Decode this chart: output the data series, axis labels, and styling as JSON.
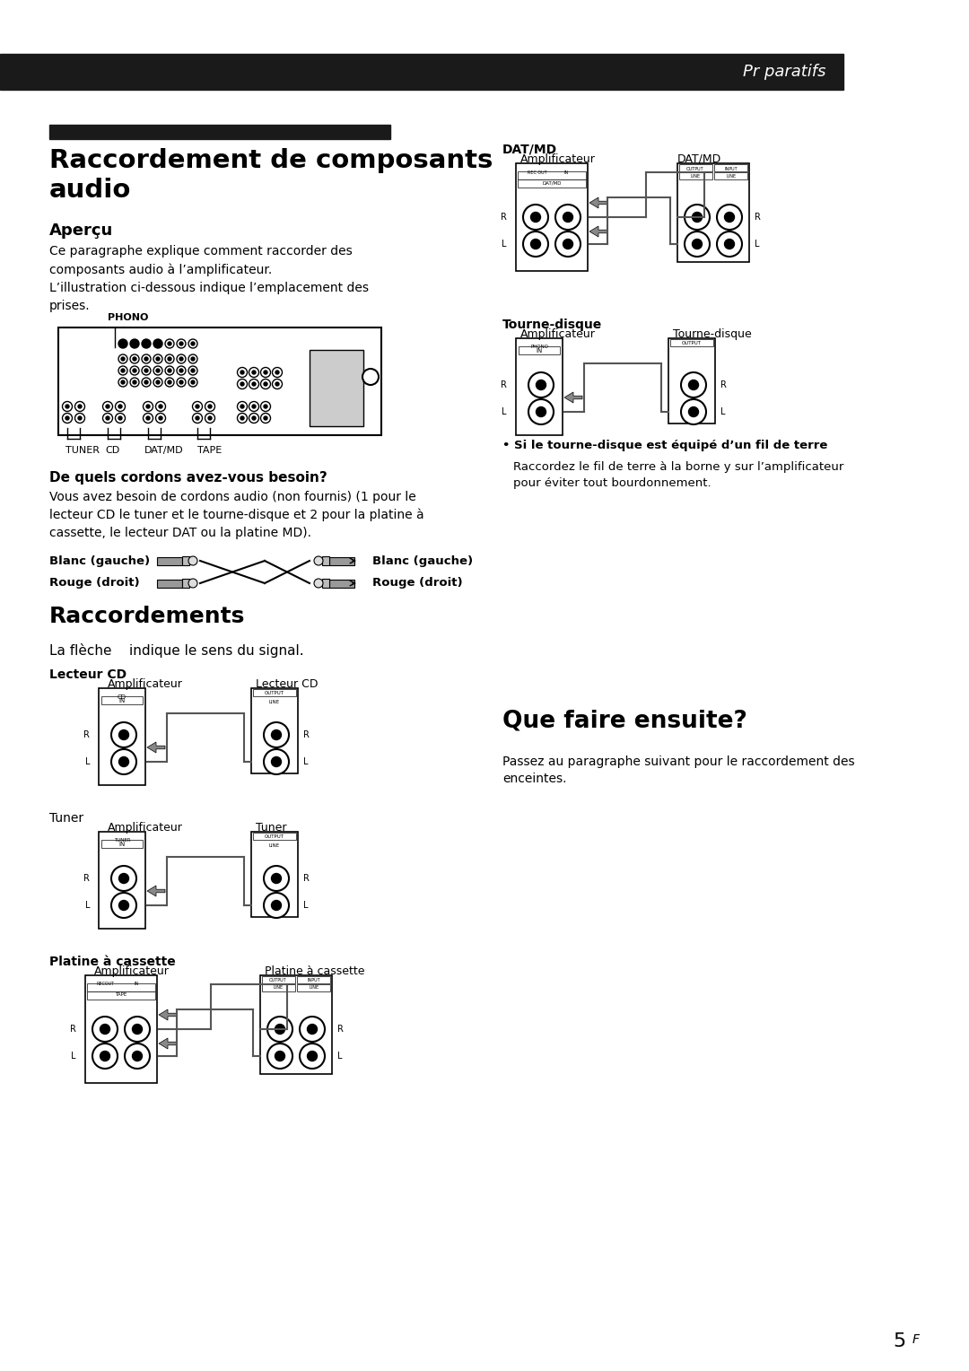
{
  "bg_color": "#ffffff",
  "header_bar_color": "#1a1a1a",
  "header_text": "Pr paratifs",
  "header_text_color": "#ffffff",
  "page_number": "5",
  "page_number_super": "F",
  "title_bar_color": "#1a1a1a",
  "main_title": "Raccordement de composants\naudio",
  "section1_title": "Aperçu",
  "section1_body": "Ce paragraphe explique comment raccorder des\ncomposants audio à l’amplificateur.\nL’illustration ci-dessous indique l’emplacement des\nprises.",
  "phono_label": "PHONO",
  "amp_labels_bottom": [
    "TUNER",
    "CD",
    "DAT/MD",
    "TAPE"
  ],
  "cordons_title": "De quels cordons avez-vous besoin?",
  "cordons_body": "Vous avez besoin de cordons audio (non fournis) (1 pour le\nlecteur CD le tuner et le tourne-disque et 2 pour la platine à\ncassette, le lecteur DAT ou la platine MD).",
  "blanc_gauche": "Blanc (gauche)",
  "rouge_droit": "Rouge (droit)",
  "raccordements_title": "Raccordements",
  "fleche_text": "La flèche    indique le sens du signal.",
  "lecteur_cd_label": "Lecteur CD",
  "amplificateur_label": "Amplificateur",
  "tuner_label": "Tuner",
  "platine_cassette_label": "Platine à cassette",
  "datmd_label": "DAT/MD",
  "tourne_disque_label": "Tourne-disque",
  "bullet_text": "Si le tourne-disque est équipé d’un fil de terre",
  "bullet_body": "Raccordez le fil de terre à la borne y sur l’amplificateur\npour éviter tout bourdonnement.",
  "que_faire_title": "Que faire ensuite?",
  "que_faire_body": "Passez au paragraphe suivant pour le raccordement des\nenceintes."
}
